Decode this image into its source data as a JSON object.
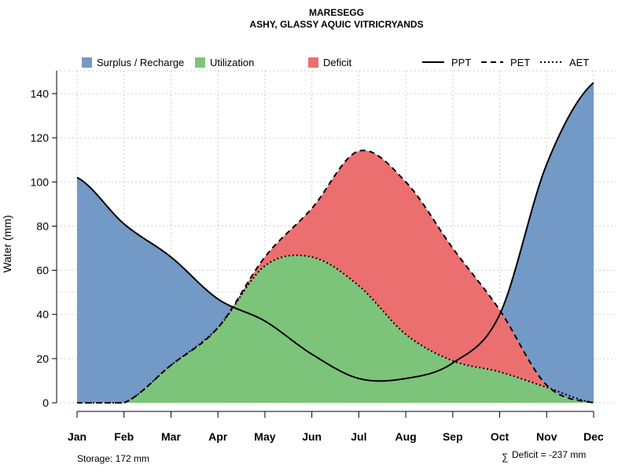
{
  "chart_data": {
    "type": "area",
    "title": "MARESEGG",
    "subtitle": "ASHY, GLASSY AQUIC VITRICRYANDS",
    "ylabel": "Water (mm)",
    "xlabel": "",
    "ylim": [
      0,
      150
    ],
    "yticks": [
      0,
      20,
      40,
      60,
      80,
      100,
      120,
      140
    ],
    "categories": [
      "Jan",
      "Feb",
      "Mar",
      "Apr",
      "May",
      "Jun",
      "Jul",
      "Aug",
      "Sep",
      "Oct",
      "Nov",
      "Dec"
    ],
    "series": [
      {
        "name": "PPT",
        "style": "solid",
        "values": [
          102,
          81,
          66,
          47,
          37,
          22,
          11,
          11,
          18,
          40,
          108,
          145
        ]
      },
      {
        "name": "PET",
        "style": "dashed",
        "values": [
          0,
          0,
          17,
          34,
          66,
          88,
          114,
          100,
          70,
          42,
          8,
          0
        ]
      },
      {
        "name": "AET",
        "style": "dotted",
        "values": [
          0,
          0,
          17,
          34,
          62,
          66,
          53,
          31,
          19,
          14,
          7,
          0
        ]
      }
    ],
    "legend": {
      "fills": [
        "Surplus / Recharge",
        "Utilization",
        "Deficit"
      ],
      "lines": [
        "PPT",
        "PET",
        "AET"
      ],
      "position": "top"
    },
    "footer_left": "Storage: 172 mm",
    "footer_right": "Deficit = -237 mm",
    "footer_right_symbol": "∑",
    "colors": {
      "surplus": "#7399C7",
      "utilization": "#7DC47B",
      "deficit": "#EC6F6F",
      "line": "#000000"
    }
  }
}
